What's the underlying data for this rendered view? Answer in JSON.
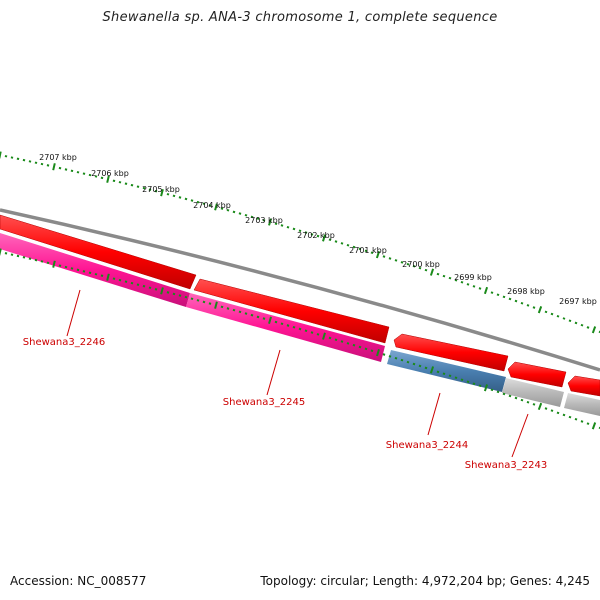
{
  "title": "Shewanella sp. ANA-3 chromosome 1, complete sequence",
  "ruler": {
    "labels": [
      "2707 kbp",
      "2706 kbp",
      "2705 kbp",
      "2704 kbp",
      "2703 kbp",
      "2702 kbp",
      "2701 kbp",
      "2700 kbp",
      "2699 kbp",
      "2698 kbp",
      "2697 kbp"
    ]
  },
  "genes": [
    {
      "label": "Shewana3_2246"
    },
    {
      "label": "Shewana3_2245"
    },
    {
      "label": "Shewana3_2244"
    },
    {
      "label": "Shewana3_2243"
    }
  ],
  "colors": {
    "forward_cds": "#ff0000",
    "reverse_cds_pink": "#ff1493",
    "reverse_cds_blue": "#4a7fb0",
    "reverse_cds_gray": "#b0b0b0",
    "backbone": "#808080",
    "ticks": "#1a8a1a",
    "gene_label": "#cc0000"
  },
  "footer": {
    "accession": "Accession: NC_008577",
    "summary": "Topology: circular; Length: 4,972,204 bp; Genes: 4,245"
  }
}
